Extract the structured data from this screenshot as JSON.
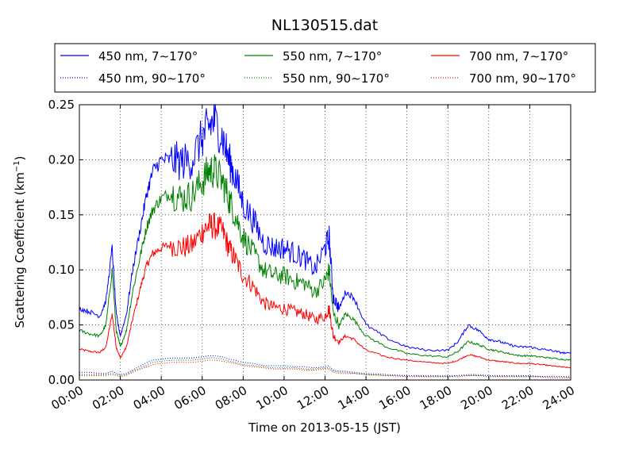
{
  "chart_data": {
    "type": "line",
    "title": "NL130515.dat",
    "xlabel": "Time on 2013-05-15 (JST)",
    "ylabel": "Scattering Coefficient (km",
    "ylabel_sup": "−1",
    "ylabel_end": ")",
    "xlim": [
      0,
      24
    ],
    "ylim": [
      0,
      0.25
    ],
    "grid": true,
    "legend_position": "top",
    "x_ticks": [
      {
        "value": 0,
        "label": "00:00"
      },
      {
        "value": 2,
        "label": "02:00"
      },
      {
        "value": 4,
        "label": "04:00"
      },
      {
        "value": 6,
        "label": "06:00"
      },
      {
        "value": 8,
        "label": "08:00"
      },
      {
        "value": 10,
        "label": "10:00"
      },
      {
        "value": 12,
        "label": "12:00"
      },
      {
        "value": 14,
        "label": "14:00"
      },
      {
        "value": 16,
        "label": "16:00"
      },
      {
        "value": 18,
        "label": "18:00"
      },
      {
        "value": 20,
        "label": "20:00"
      },
      {
        "value": 22,
        "label": "22:00"
      },
      {
        "value": 24,
        "label": "24:00"
      }
    ],
    "y_ticks": [
      {
        "value": 0,
        "label": "0.00"
      },
      {
        "value": 0.05,
        "label": "0.05"
      },
      {
        "value": 0.1,
        "label": "0.10"
      },
      {
        "value": 0.15,
        "label": "0.15"
      },
      {
        "value": 0.2,
        "label": "0.20"
      },
      {
        "value": 0.25,
        "label": "0.25"
      }
    ],
    "x_hours": [
      0,
      0.5,
      1,
      1.3,
      1.6,
      1.8,
      2,
      2.3,
      2.6,
      3,
      3.3,
      3.6,
      4,
      4.5,
      5,
      5.5,
      6,
      6.3,
      6.6,
      7,
      7.3,
      7.6,
      8,
      8.5,
      9,
      9.5,
      10,
      10.5,
      11,
      11.5,
      12,
      12.2,
      12.4,
      12.7,
      13,
      13.4,
      14,
      15,
      16,
      17,
      18,
      18.5,
      19,
      19.5,
      20,
      20.5,
      21,
      21.5,
      22,
      22.5,
      23,
      23.5,
      24
    ],
    "series": [
      {
        "name": "450 nm, 7∼170°",
        "color": "#0000ff",
        "style": "solid",
        "values": [
          0.065,
          0.062,
          0.058,
          0.072,
          0.12,
          0.06,
          0.04,
          0.06,
          0.1,
          0.14,
          0.17,
          0.19,
          0.2,
          0.2,
          0.198,
          0.2,
          0.22,
          0.23,
          0.235,
          0.22,
          0.2,
          0.185,
          0.16,
          0.145,
          0.125,
          0.12,
          0.12,
          0.115,
          0.11,
          0.1,
          0.12,
          0.13,
          0.075,
          0.065,
          0.08,
          0.075,
          0.05,
          0.038,
          0.03,
          0.027,
          0.027,
          0.035,
          0.05,
          0.045,
          0.037,
          0.035,
          0.032,
          0.03,
          0.03,
          0.028,
          0.027,
          0.025,
          0.024
        ]
      },
      {
        "name": "550 nm, 7∼170°",
        "color": "#008000",
        "style": "solid",
        "values": [
          0.045,
          0.042,
          0.04,
          0.05,
          0.1,
          0.045,
          0.03,
          0.045,
          0.08,
          0.115,
          0.14,
          0.155,
          0.165,
          0.17,
          0.165,
          0.168,
          0.18,
          0.19,
          0.19,
          0.18,
          0.165,
          0.15,
          0.13,
          0.115,
          0.1,
          0.095,
          0.095,
          0.09,
          0.088,
          0.08,
          0.09,
          0.1,
          0.06,
          0.05,
          0.06,
          0.055,
          0.04,
          0.03,
          0.024,
          0.022,
          0.021,
          0.026,
          0.035,
          0.032,
          0.028,
          0.026,
          0.024,
          0.022,
          0.022,
          0.021,
          0.02,
          0.019,
          0.018
        ]
      },
      {
        "name": "700 nm, 7∼170°",
        "color": "#ff0000",
        "style": "solid",
        "values": [
          0.028,
          0.026,
          0.025,
          0.03,
          0.06,
          0.03,
          0.02,
          0.03,
          0.055,
          0.085,
          0.105,
          0.115,
          0.12,
          0.123,
          0.12,
          0.122,
          0.135,
          0.14,
          0.14,
          0.135,
          0.12,
          0.11,
          0.095,
          0.085,
          0.07,
          0.066,
          0.065,
          0.062,
          0.06,
          0.055,
          0.058,
          0.065,
          0.04,
          0.035,
          0.04,
          0.037,
          0.027,
          0.021,
          0.018,
          0.016,
          0.015,
          0.018,
          0.023,
          0.021,
          0.018,
          0.017,
          0.016,
          0.015,
          0.015,
          0.014,
          0.013,
          0.012,
          0.011
        ]
      },
      {
        "name": "450 nm, 90∼170°",
        "color": "#0000ff",
        "style": "dotted",
        "values": [
          0.007,
          0.007,
          0.006,
          0.006,
          0.008,
          0.006,
          0.005,
          0.006,
          0.009,
          0.013,
          0.016,
          0.018,
          0.019,
          0.02,
          0.02,
          0.02,
          0.021,
          0.022,
          0.022,
          0.021,
          0.019,
          0.018,
          0.016,
          0.015,
          0.013,
          0.013,
          0.013,
          0.012,
          0.012,
          0.011,
          0.012,
          0.013,
          0.009,
          0.008,
          0.008,
          0.007,
          0.006,
          0.005,
          0.004,
          0.004,
          0.004,
          0.004,
          0.005,
          0.005,
          0.004,
          0.004,
          0.004,
          0.004,
          0.004,
          0.003,
          0.003,
          0.003,
          0.003
        ]
      },
      {
        "name": "550 nm, 90∼170°",
        "color": "#008000",
        "style": "dotted",
        "values": [
          0.005,
          0.005,
          0.005,
          0.005,
          0.006,
          0.005,
          0.004,
          0.005,
          0.008,
          0.011,
          0.014,
          0.016,
          0.017,
          0.018,
          0.018,
          0.018,
          0.019,
          0.02,
          0.02,
          0.019,
          0.017,
          0.016,
          0.014,
          0.013,
          0.012,
          0.011,
          0.011,
          0.011,
          0.01,
          0.01,
          0.011,
          0.011,
          0.008,
          0.007,
          0.007,
          0.006,
          0.005,
          0.004,
          0.004,
          0.003,
          0.003,
          0.004,
          0.004,
          0.004,
          0.004,
          0.003,
          0.003,
          0.003,
          0.003,
          0.003,
          0.003,
          0.003,
          0.002
        ]
      },
      {
        "name": "700 nm, 90∼170°",
        "color": "#ff0000",
        "style": "dotted",
        "values": [
          0.004,
          0.004,
          0.004,
          0.004,
          0.005,
          0.004,
          0.003,
          0.004,
          0.007,
          0.01,
          0.012,
          0.014,
          0.015,
          0.016,
          0.016,
          0.016,
          0.017,
          0.018,
          0.018,
          0.017,
          0.016,
          0.015,
          0.013,
          0.012,
          0.011,
          0.01,
          0.01,
          0.01,
          0.009,
          0.009,
          0.01,
          0.01,
          0.007,
          0.006,
          0.006,
          0.006,
          0.005,
          0.004,
          0.003,
          0.003,
          0.003,
          0.003,
          0.004,
          0.004,
          0.003,
          0.003,
          0.003,
          0.003,
          0.003,
          0.003,
          0.002,
          0.002,
          0.002
        ]
      }
    ]
  }
}
